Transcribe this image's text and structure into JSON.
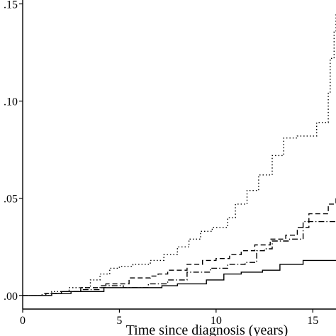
{
  "chart_data": {
    "type": "line",
    "title": "",
    "xlabel": "Time since diagnosis (years)",
    "ylabel": "",
    "xlim": [
      0,
      16.2
    ],
    "ylim": [
      -0.007,
      0.152
    ],
    "x_ticks": [
      0,
      5,
      10,
      15
    ],
    "x_tick_labels": [
      "0",
      "5",
      "10",
      "15"
    ],
    "y_ticks": [
      0.0,
      0.05,
      0.1,
      0.15
    ],
    "y_tick_labels": [
      ".00",
      ".05",
      ".10",
      ".15"
    ],
    "grid": false,
    "legend": "none",
    "series": [
      {
        "style": "dotted",
        "points": [
          [
            0,
            0
          ],
          [
            1.5,
            0.002
          ],
          [
            2.4,
            0.004
          ],
          [
            3.5,
            0.008
          ],
          [
            4.0,
            0.011
          ],
          [
            4.5,
            0.014
          ],
          [
            5.0,
            0.015
          ],
          [
            5.7,
            0.016
          ],
          [
            6.6,
            0.018
          ],
          [
            7.3,
            0.021
          ],
          [
            8.0,
            0.025
          ],
          [
            8.6,
            0.029
          ],
          [
            9.2,
            0.033
          ],
          [
            9.8,
            0.035
          ],
          [
            10.6,
            0.04
          ],
          [
            11.0,
            0.047
          ],
          [
            11.6,
            0.054
          ],
          [
            12.2,
            0.062
          ],
          [
            12.9,
            0.072
          ],
          [
            13.5,
            0.081
          ],
          [
            14.2,
            0.082
          ],
          [
            15.2,
            0.089
          ],
          [
            15.8,
            0.104
          ],
          [
            15.9,
            0.122
          ],
          [
            16.1,
            0.136
          ],
          [
            16.2,
            0.145
          ]
        ]
      },
      {
        "style": "dashed",
        "points": [
          [
            0,
            0
          ],
          [
            1.0,
            0.001
          ],
          [
            2.0,
            0.002
          ],
          [
            3.0,
            0.004
          ],
          [
            4.3,
            0.006
          ],
          [
            5.5,
            0.009
          ],
          [
            6.6,
            0.01
          ],
          [
            7.0,
            0.011
          ],
          [
            7.5,
            0.013
          ],
          [
            8.5,
            0.016
          ],
          [
            9.3,
            0.018
          ],
          [
            10.0,
            0.019
          ],
          [
            10.7,
            0.021
          ],
          [
            11.3,
            0.023
          ],
          [
            12.0,
            0.026
          ],
          [
            12.8,
            0.029
          ],
          [
            13.6,
            0.031
          ],
          [
            14.2,
            0.035
          ],
          [
            14.8,
            0.042
          ],
          [
            15.8,
            0.047
          ],
          [
            16.2,
            0.05
          ]
        ]
      },
      {
        "style": "dash-dot",
        "points": [
          [
            0,
            0
          ],
          [
            1.2,
            0.001
          ],
          [
            2.0,
            0.002
          ],
          [
            3.0,
            0.003
          ],
          [
            4.0,
            0.005
          ],
          [
            5.2,
            0.004
          ],
          [
            6.5,
            0.006
          ],
          [
            7.5,
            0.008
          ],
          [
            8.5,
            0.012
          ],
          [
            9.7,
            0.014
          ],
          [
            10.6,
            0.016
          ],
          [
            11.5,
            0.017
          ],
          [
            12.1,
            0.023
          ],
          [
            12.5,
            0.024
          ],
          [
            12.9,
            0.028
          ],
          [
            13.8,
            0.029
          ],
          [
            14.5,
            0.038
          ],
          [
            16.2,
            0.038
          ]
        ]
      },
      {
        "style": "solid",
        "points": [
          [
            0,
            0
          ],
          [
            1.5,
            0.001
          ],
          [
            2.5,
            0.002
          ],
          [
            4.2,
            0.004
          ],
          [
            5.5,
            0.004
          ],
          [
            7.2,
            0.005
          ],
          [
            8.0,
            0.006
          ],
          [
            9.5,
            0.008
          ],
          [
            10.4,
            0.011
          ],
          [
            11.3,
            0.012
          ],
          [
            12.4,
            0.013
          ],
          [
            13.3,
            0.016
          ],
          [
            14.5,
            0.018
          ],
          [
            16.2,
            0.018
          ]
        ]
      }
    ]
  }
}
